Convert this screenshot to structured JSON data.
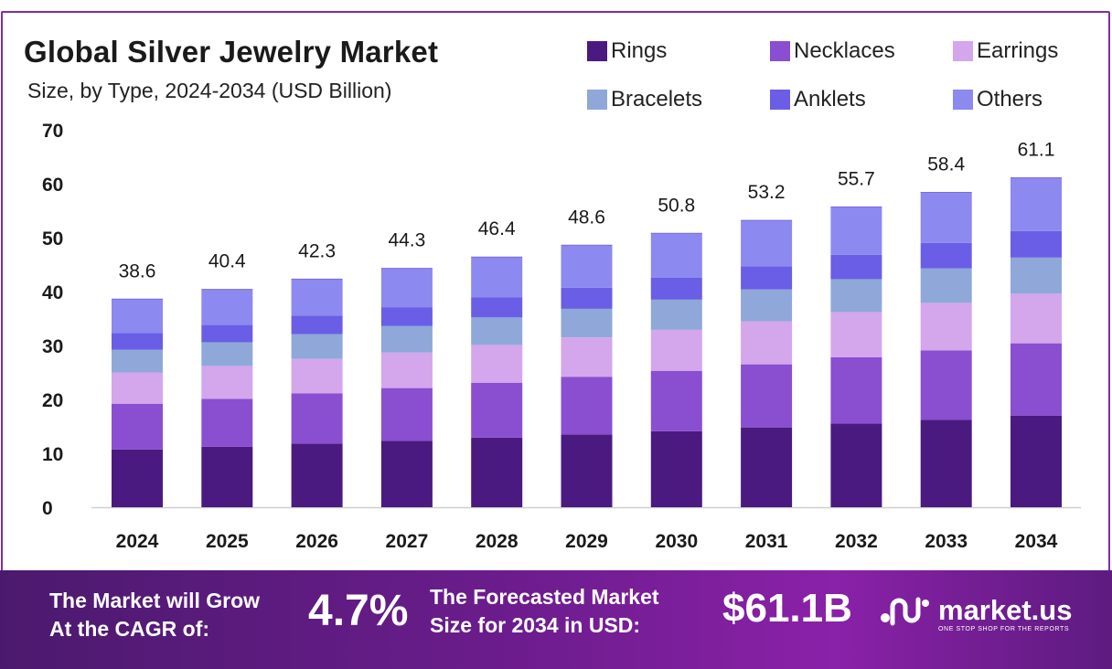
{
  "chart_data": {
    "type": "bar",
    "stacked": true,
    "title": "Global Silver Jewelry Market",
    "subtitle": "Size, by Type, 2024-2034 (USD Billion)",
    "categories": [
      "2024",
      "2025",
      "2026",
      "2027",
      "2028",
      "2029",
      "2030",
      "2031",
      "2032",
      "2033",
      "2034"
    ],
    "totals": [
      "38.6",
      "40.4",
      "42.3",
      "44.3",
      "46.4",
      "48.6",
      "50.8",
      "53.2",
      "55.7",
      "58.4",
      "61.1"
    ],
    "series": [
      {
        "name": "Rings",
        "color": "#4a1a80",
        "values": [
          10.7,
          11.2,
          11.8,
          12.3,
          12.9,
          13.5,
          14.1,
          14.8,
          15.5,
          16.2,
          17.0
        ]
      },
      {
        "name": "Necklaces",
        "color": "#8a4ed0",
        "values": [
          8.5,
          8.9,
          9.3,
          9.8,
          10.2,
          10.7,
          11.2,
          11.7,
          12.3,
          12.9,
          13.4
        ]
      },
      {
        "name": "Earrings",
        "color": "#d4a6ec",
        "values": [
          5.8,
          6.1,
          6.4,
          6.6,
          7.0,
          7.3,
          7.6,
          8.0,
          8.4,
          8.8,
          9.2
        ]
      },
      {
        "name": "Bracelets",
        "color": "#8fa8d9",
        "values": [
          4.2,
          4.4,
          4.6,
          4.9,
          5.1,
          5.3,
          5.6,
          5.9,
          6.1,
          6.4,
          6.7
        ]
      },
      {
        "name": "Anklets",
        "color": "#6a5ee6",
        "values": [
          3.1,
          3.2,
          3.4,
          3.5,
          3.7,
          3.9,
          4.1,
          4.3,
          4.5,
          4.7,
          4.9
        ]
      },
      {
        "name": "Others",
        "color": "#8c89f0",
        "values": [
          6.3,
          6.6,
          6.8,
          7.2,
          7.5,
          7.9,
          8.2,
          8.5,
          8.9,
          9.4,
          9.9
        ]
      }
    ],
    "ylim": [
      0,
      70
    ],
    "yticks": [
      "0",
      "10",
      "20",
      "30",
      "40",
      "50",
      "60",
      "70"
    ],
    "xlabel": "",
    "ylabel": "",
    "legend_position": "top-right",
    "grid": false
  },
  "footer": {
    "cagr_label": [
      "The Market will Grow",
      "At the CAGR of:"
    ],
    "cagr_value": "4.7%",
    "forecast_label": [
      "The Forecasted Market",
      "Size for 2034 in USD:"
    ],
    "forecast_value": "$61.1B",
    "brand_name": "market.us",
    "brand_tagline": "ONE STOP SHOP FOR THE REPORTS"
  },
  "colors": {
    "frame": "#7b2fa6",
    "footer_start": "#4b1a6e",
    "footer_end": "#8a21a8"
  }
}
